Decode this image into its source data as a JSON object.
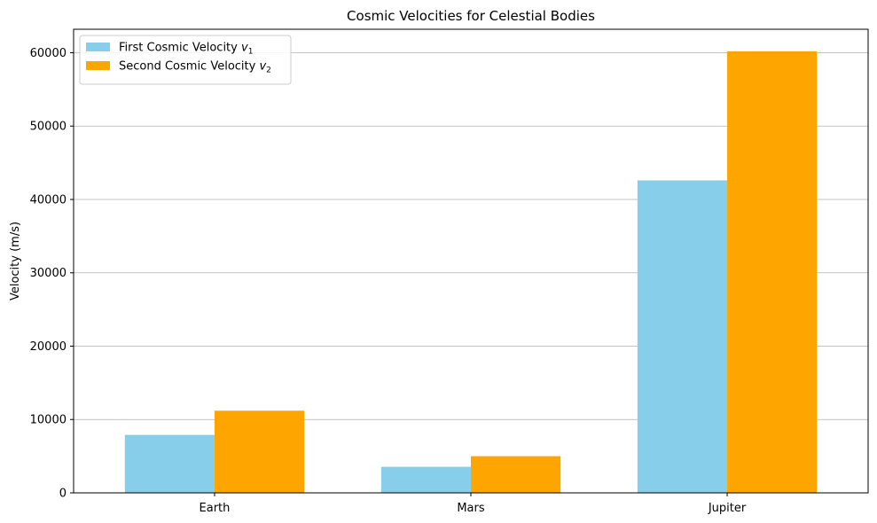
{
  "chart_data": {
    "type": "bar",
    "title": "Cosmic Velocities for Celestial Bodies",
    "xlabel": "",
    "ylabel": "Velocity (m/s)",
    "categories": [
      "Earth",
      "Mars",
      "Jupiter"
    ],
    "series": [
      {
        "name": "First Cosmic Velocity v1",
        "legend_main": "First Cosmic Velocity ",
        "legend_symbol": "v",
        "legend_sub": "1",
        "color": "#87ceeb",
        "values": [
          7900,
          3550,
          42600
        ]
      },
      {
        "name": "Second Cosmic Velocity v2",
        "legend_main": "Second Cosmic Velocity ",
        "legend_symbol": "v",
        "legend_sub": "2",
        "color": "#ffa500",
        "values": [
          11200,
          5000,
          60200
        ]
      }
    ],
    "ylim": [
      0,
      63200
    ],
    "yticks": [
      0,
      10000,
      20000,
      30000,
      40000,
      50000,
      60000
    ],
    "ytick_labels": [
      "0",
      "10000",
      "20000",
      "30000",
      "40000",
      "50000",
      "60000"
    ],
    "grid": "y",
    "grid_color": "#b0b0b0",
    "legend_position": "top-left"
  }
}
